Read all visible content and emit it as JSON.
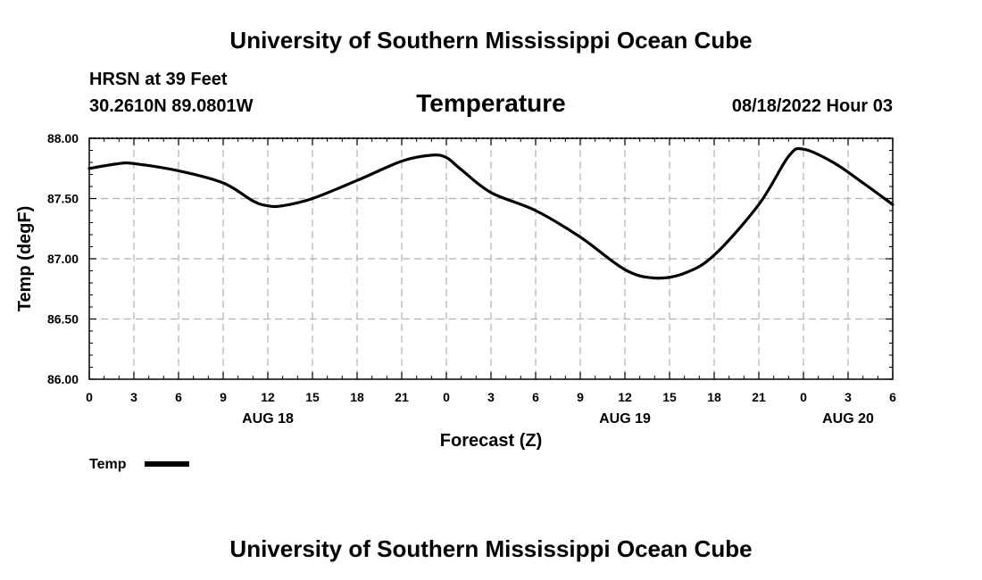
{
  "page": {
    "header_title": "University of Southern Mississippi Ocean Cube",
    "footer_title": "University of Southern Mississippi Ocean Cube",
    "station": "HRSN at 39 Feet",
    "coordinates": "30.2610N  89.0801W",
    "chart_title": "Temperature",
    "issued": "08/18/2022 Hour 03"
  },
  "chart_data": {
    "type": "line",
    "title": "Temperature",
    "xlabel": "Forecast (Z)",
    "ylabel": "Temp (degF)",
    "ylim": [
      86.0,
      88.0
    ],
    "xlim": [
      0,
      54
    ],
    "grid": true,
    "legend": "bottom-left",
    "x_unit": "hours from 2022-08-18 00Z",
    "y_ticks": [
      "86.00",
      "86.50",
      "87.00",
      "87.50",
      "88.00"
    ],
    "x_ticks": [
      {
        "x": 0,
        "label": "0"
      },
      {
        "x": 3,
        "label": "3"
      },
      {
        "x": 6,
        "label": "6"
      },
      {
        "x": 9,
        "label": "9"
      },
      {
        "x": 12,
        "label": "12"
      },
      {
        "x": 15,
        "label": "15"
      },
      {
        "x": 18,
        "label": "18"
      },
      {
        "x": 21,
        "label": "21"
      },
      {
        "x": 24,
        "label": "0"
      },
      {
        "x": 27,
        "label": "3"
      },
      {
        "x": 30,
        "label": "6"
      },
      {
        "x": 33,
        "label": "9"
      },
      {
        "x": 36,
        "label": "12"
      },
      {
        "x": 39,
        "label": "15"
      },
      {
        "x": 42,
        "label": "18"
      },
      {
        "x": 45,
        "label": "21"
      },
      {
        "x": 48,
        "label": "0"
      },
      {
        "x": 51,
        "label": "3"
      },
      {
        "x": 54,
        "label": "6"
      }
    ],
    "date_labels": [
      {
        "x": 12,
        "label": "AUG 18"
      },
      {
        "x": 36,
        "label": "AUG 19"
      },
      {
        "x": 51,
        "label": "AUG 20"
      }
    ],
    "series": [
      {
        "name": "Temp",
        "x": [
          0,
          2,
          3,
          6,
          9,
          11,
          12,
          13,
          15,
          18,
          21,
          23,
          24,
          25,
          27,
          30,
          33,
          36,
          38,
          40,
          42,
          45,
          47,
          48,
          50,
          52,
          54
        ],
        "y": [
          87.75,
          87.79,
          87.79,
          87.73,
          87.63,
          87.48,
          87.44,
          87.44,
          87.5,
          87.65,
          87.81,
          87.86,
          87.84,
          87.74,
          87.55,
          87.4,
          87.18,
          86.91,
          86.84,
          86.88,
          87.03,
          87.45,
          87.85,
          87.91,
          87.8,
          87.63,
          87.45
        ]
      }
    ]
  }
}
